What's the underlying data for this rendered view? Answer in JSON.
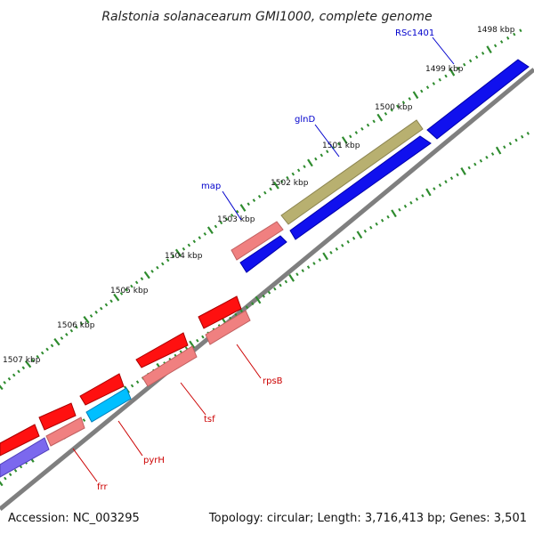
{
  "title": "Ralstonia solanacearum GMI1000, complete genome",
  "footer": {
    "accession": "Accession: NC_003295",
    "summary": "Topology: circular; Length: 3,716,413 bp; Genes: 3,501"
  },
  "colors": {
    "backbone": "#888888",
    "tick": "#2e8b2e",
    "forward_cds": "#0000ee",
    "reverse_cds": "#ff0000",
    "reverse_cds_light": "#f08080",
    "olive_gene": "#b8b070",
    "cyan_gene": "#00bfff",
    "purple_gene": "#7b68ee",
    "forward_label": "#0000cc",
    "reverse_label": "#cc0000"
  },
  "kbp_labels": [
    "1498 kbp",
    "1499 kbp",
    "1500 kbp",
    "1501 kbp",
    "1502 kbp",
    "1503 kbp",
    "1504 kbp",
    "1505 kbp",
    "1506 kbp",
    "1507 kbp"
  ],
  "gene_labels": {
    "rsc1401": "RSc1401",
    "glnd": "glnD",
    "map": "map",
    "rpsb": "rpsB",
    "tsf": "tsf",
    "pyrh": "pyrH",
    "frr": "frr"
  }
}
